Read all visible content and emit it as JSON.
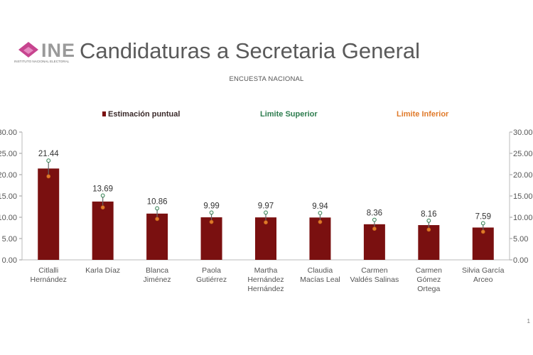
{
  "header": {
    "logo_text": "INE",
    "logo_subtext": "INSTITUTO NACIONAL ELECTORAL",
    "title": "Candidaturas a Secretaria General",
    "subtitle": "ENCUESTA NACIONAL"
  },
  "footer": {
    "page_number": "1"
  },
  "colors": {
    "bar": "#7a1010",
    "upper_limit": "#2e7d4f",
    "lower_limit": "#e07a2a",
    "error_bar": "#666666"
  },
  "chart_data": {
    "type": "bar",
    "title": "Candidaturas a Secretaria General",
    "subtitle": "ENCUESTA NACIONAL",
    "categories": [
      [
        "Citlalli",
        "Hernández"
      ],
      [
        "Karla Díaz"
      ],
      [
        "Blanca",
        "Jiménez"
      ],
      [
        "Paola",
        "Gutiérrez"
      ],
      [
        "Martha",
        "Hernández",
        "Hernández"
      ],
      [
        "Claudia",
        "Macías Leal"
      ],
      [
        "Carmen",
        "Valdés Salinas"
      ],
      [
        "Carmen",
        "Gómez",
        "Ortega"
      ],
      [
        "Silvia García",
        "Arceo"
      ]
    ],
    "series": [
      {
        "name": "Estimación puntual",
        "values": [
          21.44,
          13.69,
          10.86,
          9.99,
          9.97,
          9.94,
          8.36,
          8.16,
          7.59
        ]
      },
      {
        "name": "Limite Superior",
        "values": [
          23.3,
          15.1,
          12.1,
          11.1,
          11.1,
          11.0,
          9.4,
          9.2,
          8.6
        ]
      },
      {
        "name": "Limite Inferior",
        "values": [
          19.6,
          12.3,
          9.6,
          8.9,
          8.8,
          8.9,
          7.3,
          7.1,
          6.6
        ]
      }
    ],
    "data_labels": [
      "21.44",
      "13.69",
      "10.86",
      "9.99",
      "9.97",
      "9.94",
      "8.36",
      "8.16",
      "7.59"
    ],
    "ylim": [
      0,
      30
    ],
    "y_ticks": [
      "0.00",
      "5.00",
      "10.00",
      "15.00",
      "20.00",
      "25.00",
      "30.00"
    ],
    "legend_position": "top",
    "grid": false
  }
}
